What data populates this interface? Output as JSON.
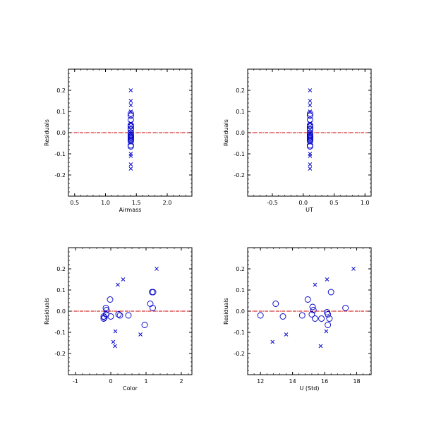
{
  "colors": {
    "marker": "#0000cc",
    "zero_line": "#cc0000",
    "axis": "#000000"
  },
  "chart_data": [
    {
      "type": "scatter",
      "xlabel": "Airmass",
      "ylabel": "Residuals",
      "xlim": [
        0.4,
        2.4
      ],
      "ylim": [
        -0.3,
        0.3
      ],
      "xticks": [
        0.5,
        1.0,
        1.5,
        2.0
      ],
      "xtick_labels": [
        "0.5",
        "1.0",
        "1.5",
        "2.0"
      ],
      "yticks": [
        -0.2,
        -0.1,
        0.0,
        0.1,
        0.2
      ],
      "ytick_labels": [
        "-0.2",
        "-0.1",
        "0.0",
        "0.1",
        "0.2"
      ],
      "zero_line": 0.0,
      "series": [
        {
          "marker": "circle",
          "x": [
            1.41,
            1.41,
            1.41,
            1.41,
            1.41,
            1.41,
            1.41,
            1.41,
            1.41,
            1.41,
            1.41,
            1.41,
            1.41,
            1.41,
            1.41,
            1.41,
            1.41,
            1.41
          ],
          "y": [
            0.09,
            0.08,
            0.06,
            0.035,
            0.03,
            0.02,
            0.015,
            0.0,
            -0.01,
            -0.015,
            -0.02,
            -0.02,
            -0.025,
            -0.03,
            -0.035,
            -0.04,
            -0.06,
            -0.065
          ]
        },
        {
          "marker": "cross",
          "x": [
            1.41,
            1.41,
            1.41,
            1.41,
            1.41,
            1.41,
            1.41,
            1.41,
            1.41,
            1.41
          ],
          "y": [
            0.2,
            0.15,
            0.13,
            0.1,
            -0.1,
            -0.11,
            -0.15,
            -0.17,
            0.045,
            -0.005
          ]
        }
      ]
    },
    {
      "type": "scatter",
      "xlabel": "UT",
      "ylabel": "Residuals",
      "xlim": [
        -0.9,
        1.1
      ],
      "ylim": [
        -0.3,
        0.3
      ],
      "xticks": [
        -0.5,
        0.0,
        0.5,
        1.0
      ],
      "xtick_labels": [
        "-0.5",
        "0.0",
        "0.5",
        "1.0"
      ],
      "yticks": [
        -0.2,
        -0.1,
        0.0,
        0.1,
        0.2
      ],
      "ytick_labels": [
        "-0.2",
        "-0.1",
        "0.0",
        "0.1",
        "0.2"
      ],
      "zero_line": 0.0,
      "series": [
        {
          "marker": "circle",
          "x": [
            0.11,
            0.11,
            0.11,
            0.11,
            0.11,
            0.11,
            0.11,
            0.11,
            0.11,
            0.11,
            0.11,
            0.11,
            0.11,
            0.11,
            0.11,
            0.11,
            0.11,
            0.11
          ],
          "y": [
            0.09,
            0.08,
            0.06,
            0.035,
            0.03,
            0.02,
            0.015,
            0.0,
            -0.01,
            -0.015,
            -0.02,
            -0.02,
            -0.025,
            -0.03,
            -0.035,
            -0.04,
            -0.06,
            -0.065
          ]
        },
        {
          "marker": "cross",
          "x": [
            0.11,
            0.11,
            0.11,
            0.11,
            0.11,
            0.11,
            0.11,
            0.11,
            0.11,
            0.11
          ],
          "y": [
            0.2,
            0.15,
            0.13,
            0.1,
            -0.1,
            -0.11,
            -0.15,
            -0.17,
            0.045,
            -0.005
          ]
        }
      ]
    },
    {
      "type": "scatter",
      "xlabel": "Color",
      "ylabel": "Residuals",
      "xlim": [
        -1.2,
        2.3
      ],
      "ylim": [
        -0.3,
        0.3
      ],
      "xticks": [
        -1,
        0,
        1,
        2
      ],
      "xtick_labels": [
        "-1",
        "0",
        "1",
        "2"
      ],
      "yticks": [
        -0.2,
        -0.1,
        0.0,
        0.1,
        0.2
      ],
      "ytick_labels": [
        "-0.2",
        "-0.1",
        "0.0",
        "0.1",
        "0.2"
      ],
      "zero_line": 0.0,
      "series": [
        {
          "marker": "circle",
          "x": [
            -0.02,
            -0.14,
            -0.12,
            -0.13,
            -0.2,
            -0.2,
            -0.18,
            0.0,
            0.22,
            0.26,
            0.5,
            0.96,
            1.12,
            1.17,
            1.2,
            1.19
          ],
          "y": [
            0.055,
            0.015,
            0.005,
            -0.015,
            -0.025,
            -0.035,
            -0.03,
            -0.025,
            -0.015,
            -0.02,
            -0.02,
            -0.065,
            0.035,
            0.09,
            0.09,
            0.015
          ]
        },
        {
          "marker": "cross",
          "x": [
            0.35,
            0.2,
            1.3,
            0.13,
            0.07,
            0.12,
            0.84
          ],
          "y": [
            0.15,
            0.125,
            0.2,
            -0.095,
            -0.145,
            -0.165,
            -0.11
          ]
        }
      ]
    },
    {
      "type": "scatter",
      "xlabel": "U (Std)",
      "ylabel": "Residuals",
      "xlim": [
        11.2,
        18.9
      ],
      "ylim": [
        -0.3,
        0.3
      ],
      "xticks": [
        12,
        14,
        16,
        18
      ],
      "xtick_labels": [
        "12",
        "14",
        "16",
        "18"
      ],
      "yticks": [
        -0.2,
        -0.1,
        0.0,
        0.1,
        0.2
      ],
      "ytick_labels": [
        "-0.2",
        "-0.1",
        "0.0",
        "0.1",
        "0.2"
      ],
      "zero_line": 0.0,
      "series": [
        {
          "marker": "circle",
          "x": [
            12.0,
            12.95,
            13.4,
            14.6,
            14.95,
            15.25,
            15.3,
            15.2,
            15.4,
            15.8,
            16.15,
            16.2,
            16.3,
            16.4,
            16.2,
            17.3
          ],
          "y": [
            -0.02,
            0.035,
            -0.025,
            -0.02,
            0.055,
            0.02,
            0.005,
            -0.015,
            -0.035,
            -0.035,
            -0.005,
            -0.015,
            -0.035,
            0.09,
            -0.065,
            0.015
          ]
        },
        {
          "marker": "cross",
          "x": [
            17.8,
            16.15,
            15.4,
            16.1,
            13.6,
            12.75,
            15.75
          ],
          "y": [
            0.2,
            0.15,
            0.125,
            -0.095,
            -0.11,
            -0.145,
            -0.165
          ]
        }
      ]
    }
  ]
}
